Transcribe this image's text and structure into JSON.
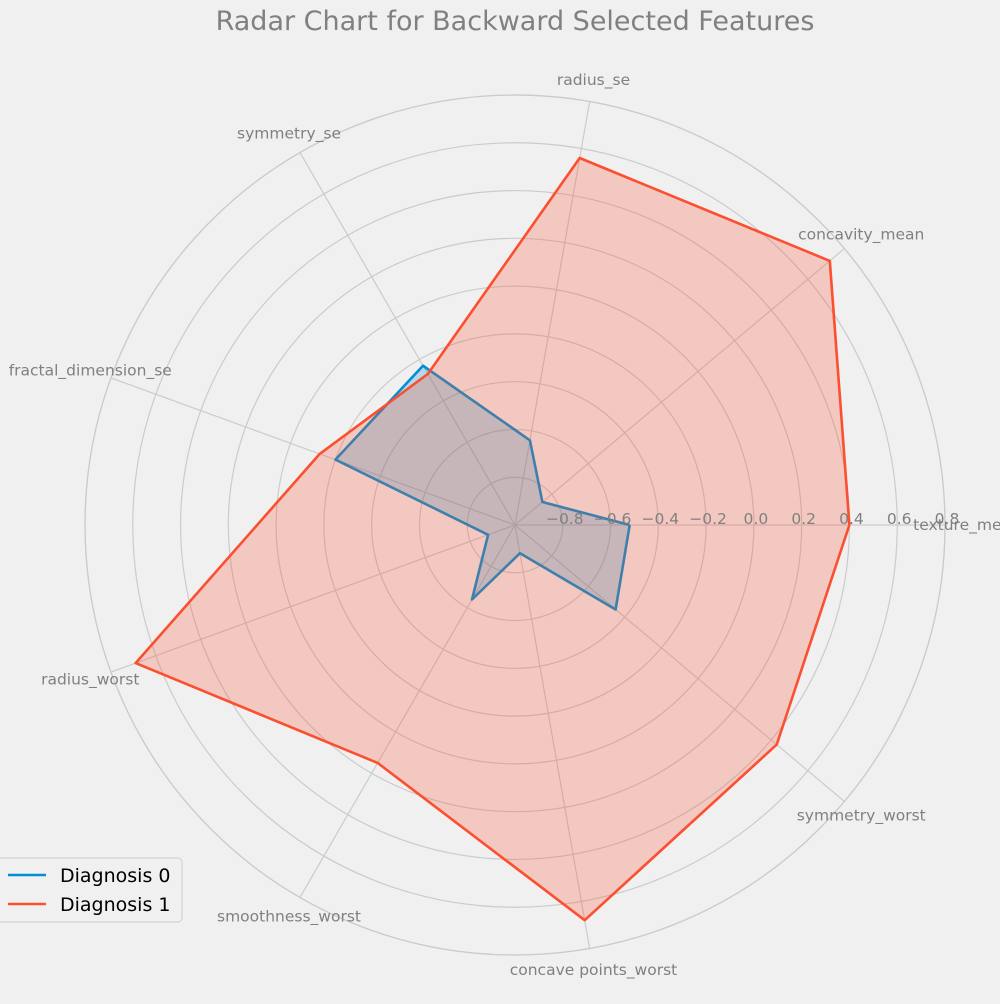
{
  "chart_data": {
    "type": "radar",
    "title": "Radar Chart for Backward Selected Features",
    "categories": [
      "texture_mean",
      "concavity_mean",
      "radius_se",
      "symmetry_se",
      "fractal_dimension_se",
      "radius_worst",
      "smoothness_worst",
      "concave points_worst",
      "symmetry_worst"
    ],
    "rlim": [
      -1.0,
      0.8
    ],
    "rticks": [
      -0.8,
      -0.6,
      -0.4,
      -0.2,
      0.0,
      0.2,
      0.4,
      0.6,
      0.8
    ],
    "rtick_labels": [
      "−0.8",
      "−0.6",
      "−0.4",
      "−0.2",
      "0.0",
      "0.2",
      "0.4",
      "0.6",
      "0.8"
    ],
    "grid": true,
    "legend_position": "bottom-left",
    "series": [
      {
        "name": "Diagnosis 0",
        "color": "#008fd5",
        "values": [
          -0.52,
          -0.85,
          -0.64,
          -0.23,
          -0.2,
          -0.88,
          -0.64,
          -0.88,
          -0.45
        ]
      },
      {
        "name": "Diagnosis 1",
        "color": "#fc4f30",
        "values": [
          0.4,
          0.72,
          0.56,
          -0.27,
          -0.13,
          0.69,
          0.15,
          0.68,
          0.43
        ]
      }
    ]
  }
}
